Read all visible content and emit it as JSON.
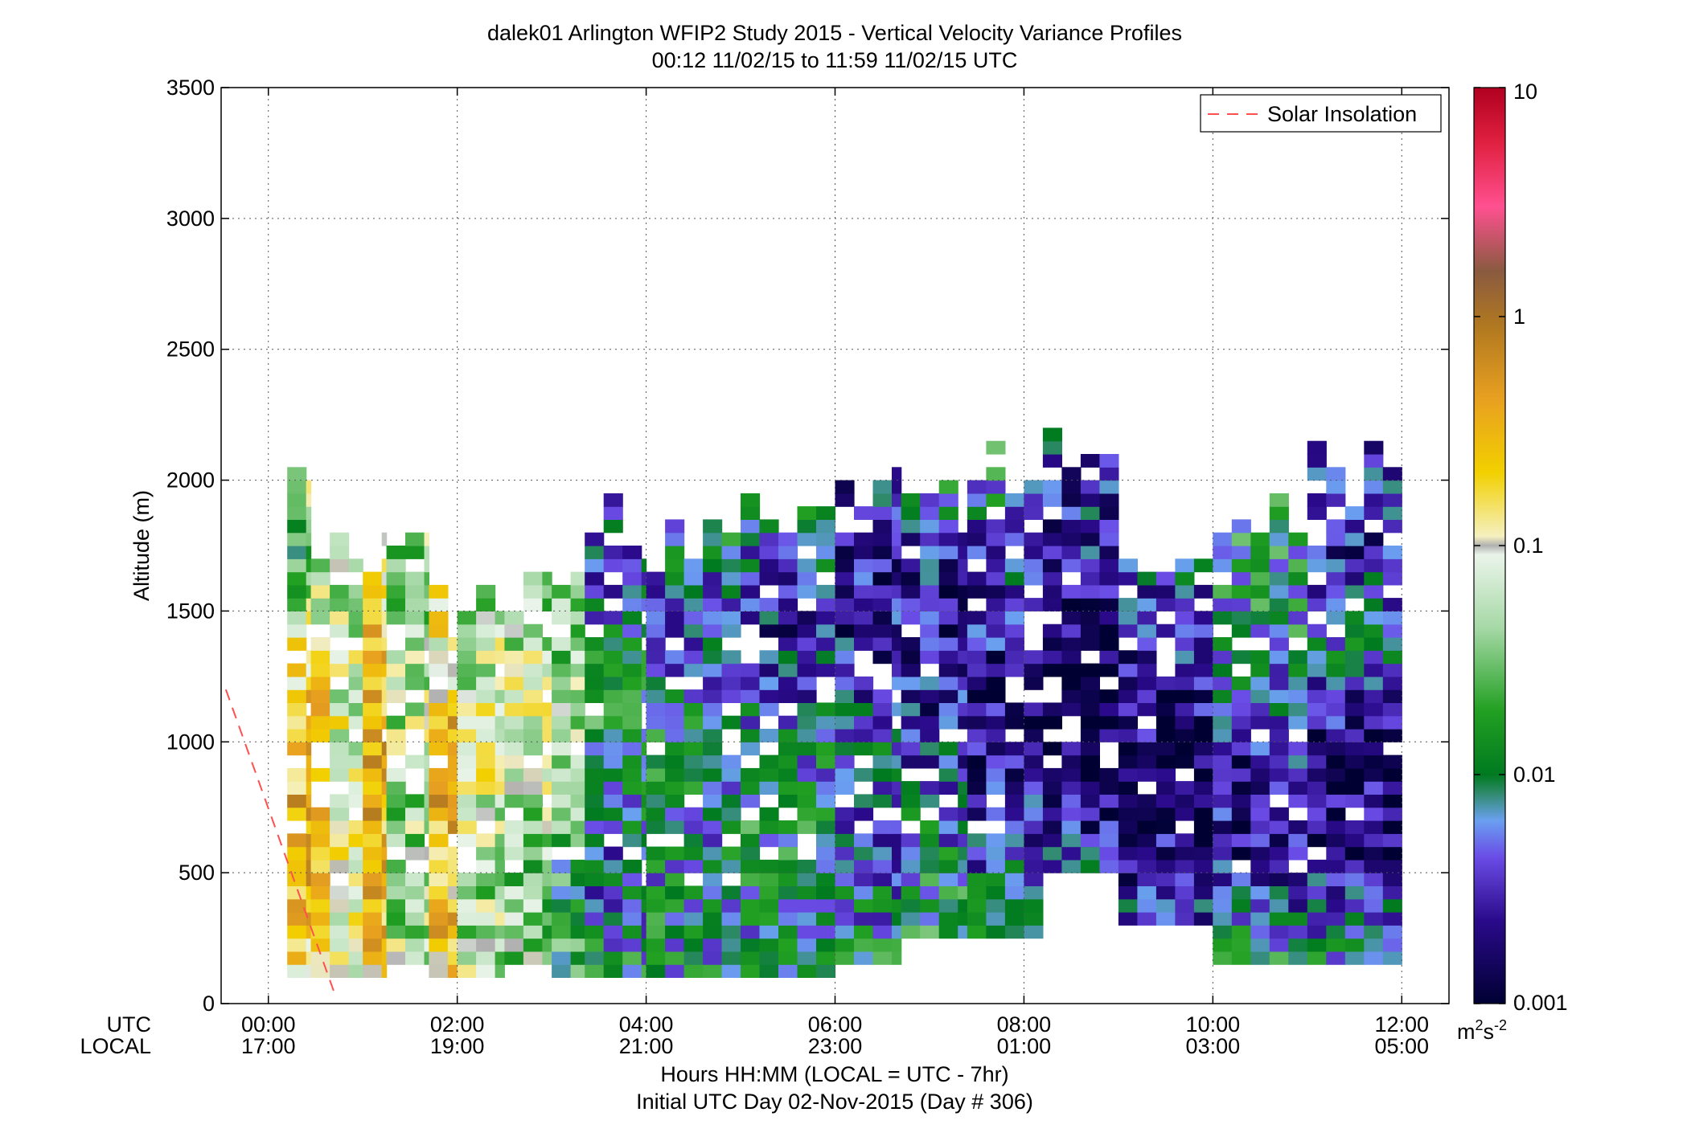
{
  "chart_data": {
    "type": "heatmap",
    "title": "dalek01 Arlington WFIP2 Study 2015 - Vertical Velocity Variance Profiles",
    "subtitle": "00:12 11/02/15 to 11:59 11/02/15  UTC",
    "ylabel": "Altitude (m)",
    "xlabel": "Hours HH:MM  (LOCAL = UTC - 7hr)",
    "xlabel2": "Initial UTC Day 02-Nov-2015 (Day # 306)",
    "row_labels": {
      "utc": "UTC",
      "local": "LOCAL"
    },
    "x_ticks_utc": [
      "00:00",
      "02:00",
      "04:00",
      "06:00",
      "08:00",
      "10:00",
      "12:00"
    ],
    "x_ticks_local": [
      "17:00",
      "19:00",
      "21:00",
      "23:00",
      "01:00",
      "03:00",
      "05:00"
    ],
    "x_tick_hours": [
      0,
      2,
      4,
      6,
      8,
      10,
      12
    ],
    "xlim_hours": [
      -0.5,
      12.5
    ],
    "ylim": [
      0,
      3500
    ],
    "y_ticks": [
      "0",
      "500",
      "1000",
      "1500",
      "2000",
      "2500",
      "3000",
      "3500"
    ],
    "grid": true,
    "legend": {
      "position": "top-right",
      "entry": "Solar Insolation",
      "color": "#ff5050"
    },
    "solar_insolation_line": {
      "x_hours": [
        -0.45,
        0.7
      ],
      "y": [
        1200,
        40
      ]
    },
    "colorbar": {
      "scale": "log",
      "range": [
        0.001,
        10
      ],
      "ticks": [
        "0.001",
        "0.01",
        "0.1",
        "1",
        "10"
      ],
      "unit": "m^2s^-2",
      "unit_base1": "m",
      "unit_sup1": "2",
      "unit_base2": "s",
      "unit_sup2": "-2"
    },
    "profiles": {
      "time_step_hours": 0.2,
      "altitude_step_m": 50,
      "segments": [
        {
          "t0": 0.2,
          "t1": 0.45,
          "z0": 100,
          "z1": 2150,
          "levels": [
            [
              100,
              0.2
            ],
            [
              700,
              0.35
            ],
            [
              1200,
              0.2
            ],
            [
              1700,
              0.02
            ],
            [
              2150,
              0.15
            ]
          ]
        },
        {
          "t0": 0.45,
          "t1": 0.65,
          "z0": 100,
          "z1": 1900,
          "levels": [
            [
              100,
              0.15
            ],
            [
              700,
              0.3
            ],
            [
              1200,
              0.25
            ],
            [
              1600,
              0.05
            ],
            [
              1900,
              0.03
            ]
          ]
        },
        {
          "t0": 0.65,
          "t1": 1.0,
          "z0": 100,
          "z1": 1850,
          "levels": [
            [
              100,
              0.1
            ],
            [
              600,
              0.12
            ],
            [
              1100,
              0.08
            ],
            [
              1500,
              0.05
            ],
            [
              1850,
              0.03
            ]
          ]
        },
        {
          "t0": 1.0,
          "t1": 1.25,
          "z0": 100,
          "z1": 1850,
          "levels": [
            [
              100,
              0.25
            ],
            [
              600,
              0.35
            ],
            [
              1000,
              0.3
            ],
            [
              1500,
              0.2
            ],
            [
              1850,
              0.3
            ]
          ]
        },
        {
          "t0": 1.25,
          "t1": 1.7,
          "z0": 150,
          "z1": 1950,
          "levels": [
            [
              150,
              0.05
            ],
            [
              600,
              0.04
            ],
            [
              1000,
              0.06
            ],
            [
              1500,
              0.04
            ],
            [
              1950,
              0.05
            ]
          ]
        },
        {
          "t0": 1.7,
          "t1": 2.0,
          "z0": 100,
          "z1": 1600,
          "levels": [
            [
              100,
              0.25
            ],
            [
              600,
              0.3
            ],
            [
              1000,
              0.3
            ],
            [
              1400,
              0.12
            ],
            [
              1600,
              0.1
            ]
          ]
        },
        {
          "t0": 2.0,
          "t1": 2.5,
          "z0": 100,
          "z1": 1600,
          "levels": [
            [
              100,
              0.05
            ],
            [
              500,
              0.04
            ],
            [
              900,
              0.1
            ],
            [
              1200,
              0.06
            ],
            [
              1600,
              0.05
            ]
          ]
        },
        {
          "t0": 2.5,
          "t1": 3.0,
          "z0": 150,
          "z1": 1650,
          "levels": [
            [
              150,
              0.04
            ],
            [
              500,
              0.03
            ],
            [
              900,
              0.08
            ],
            [
              1300,
              0.07
            ],
            [
              1650,
              0.03
            ]
          ]
        },
        {
          "t0": 3.0,
          "t1": 3.35,
          "z0": 100,
          "z1": 1650,
          "levels": [
            [
              100,
              0.02
            ],
            [
              500,
              0.015
            ],
            [
              900,
              0.05
            ],
            [
              1300,
              0.04
            ],
            [
              1650,
              0.03
            ]
          ]
        },
        {
          "t0": 3.35,
          "t1": 4.0,
          "z0": 100,
          "z1": 1950,
          "levels": [
            [
              100,
              0.01
            ],
            [
              600,
              0.005
            ],
            [
              900,
              0.015
            ],
            [
              1300,
              0.01
            ],
            [
              1700,
              0.004
            ],
            [
              1950,
              0.005
            ]
          ]
        },
        {
          "t0": 4.0,
          "t1": 5.0,
          "z0": 100,
          "z1": 1850,
          "levels": [
            [
              100,
              0.01
            ],
            [
              600,
              0.008
            ],
            [
              1000,
              0.01
            ],
            [
              1400,
              0.005
            ],
            [
              1850,
              0.01
            ]
          ]
        },
        {
          "t0": 5.0,
          "t1": 6.0,
          "z0": 100,
          "z1": 1950,
          "levels": [
            [
              100,
              0.008
            ],
            [
              600,
              0.012
            ],
            [
              1000,
              0.007
            ],
            [
              1400,
              0.003
            ],
            [
              1950,
              0.01
            ]
          ]
        },
        {
          "t0": 6.0,
          "t1": 6.7,
          "z0": 150,
          "z1": 2100,
          "levels": [
            [
              150,
              0.01
            ],
            [
              500,
              0.005
            ],
            [
              900,
              0.008
            ],
            [
              1300,
              0.003
            ],
            [
              1700,
              0.002
            ],
            [
              2100,
              0.005
            ]
          ]
        },
        {
          "t0": 6.7,
          "t1": 7.4,
          "z0": 250,
          "z1": 2000,
          "levels": [
            [
              250,
              0.015
            ],
            [
              700,
              0.006
            ],
            [
              1100,
              0.003
            ],
            [
              1500,
              0.002
            ],
            [
              2000,
              0.01
            ]
          ]
        },
        {
          "t0": 7.4,
          "t1": 8.2,
          "z0": 250,
          "z1": 2150,
          "levels": [
            [
              250,
              0.02
            ],
            [
              600,
              0.003
            ],
            [
              1000,
              0.002
            ],
            [
              1400,
              0.003
            ],
            [
              1800,
              0.005
            ],
            [
              2150,
              0.02
            ]
          ]
        },
        {
          "t0": 8.2,
          "t1": 9.0,
          "z0": 500,
          "z1": 2200,
          "levels": [
            [
              500,
              0.005
            ],
            [
              800,
              0.0015
            ],
            [
              1200,
              0.001
            ],
            [
              1700,
              0.003
            ],
            [
              2200,
              0.004
            ]
          ]
        },
        {
          "t0": 9.0,
          "t1": 10.0,
          "z0": 300,
          "z1": 1750,
          "levels": [
            [
              300,
              0.004
            ],
            [
              700,
              0.0015
            ],
            [
              1100,
              0.002
            ],
            [
              1500,
              0.004
            ],
            [
              1750,
              0.008
            ]
          ]
        },
        {
          "t0": 10.0,
          "t1": 11.0,
          "z0": 150,
          "z1": 1950,
          "levels": [
            [
              150,
              0.01
            ],
            [
              600,
              0.002
            ],
            [
              1000,
              0.003
            ],
            [
              1400,
              0.01
            ],
            [
              1950,
              0.012
            ]
          ]
        },
        {
          "t0": 11.0,
          "t1": 12.0,
          "z0": 150,
          "z1": 2150,
          "levels": [
            [
              150,
              0.01
            ],
            [
              600,
              0.0015
            ],
            [
              1000,
              0.002
            ],
            [
              1400,
              0.008
            ],
            [
              1700,
              0.003
            ],
            [
              2150,
              0.003
            ]
          ]
        }
      ]
    }
  }
}
